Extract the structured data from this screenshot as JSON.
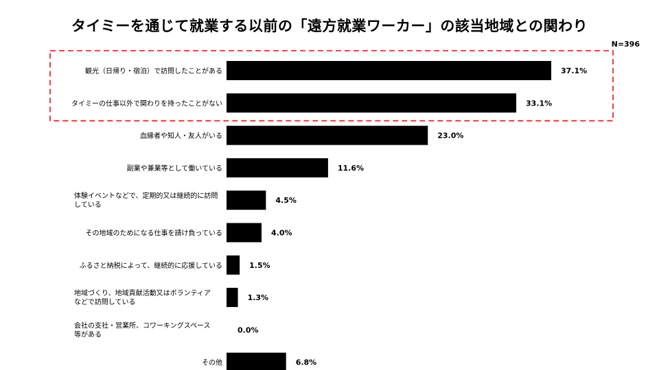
{
  "title": "タイミーを通じて就業する以前の「遠方就業ワーカー」の該当地域との関わり",
  "sample_size": "N=396",
  "colors": {
    "bar": "#000000",
    "highlight_box": "#e0302f"
  },
  "chart_data": {
    "type": "bar",
    "orientation": "horizontal",
    "categories": [
      "観光（日帰り・宿泊）で訪問したことがある",
      "タイミーの仕事以外で関わりを持ったことがない",
      "血縁者や知人・友人がいる",
      "副業や兼業等として働いている",
      "体験イベントなどで、定期的又は継続的に訪問している",
      "その地域のためになる仕事を請け負っている",
      "ふるさと納税によって、継続的に応援している",
      "地域づくり、地域貢献活動又はボランティアなどで訪問している",
      "会社の支社・営業所、コワーキングスペース等がある",
      "その他"
    ],
    "category_lines": [
      [
        "観光（日帰り・宿泊）で訪問したことがある"
      ],
      [
        "タイミーの仕事以外で関わりを持ったことがない"
      ],
      [
        "血縁者や知人・友人がいる"
      ],
      [
        "副業や兼業等として働いている"
      ],
      [
        "体験イベントなどで、定期的又は継続的に訪問",
        "している"
      ],
      [
        "その地域のためになる仕事を請け負っている"
      ],
      [
        "ふるさと納税によって、継続的に応援している"
      ],
      [
        "地域づくり、地域貢献活動又はボランティア",
        "などで訪問している"
      ],
      [
        "会社の支社・営業所、コワーキングスペース",
        "等がある"
      ],
      [
        "その他"
      ]
    ],
    "values": [
      37.1,
      33.1,
      23.0,
      11.6,
      4.5,
      4.0,
      1.5,
      1.3,
      0.0,
      6.8
    ],
    "value_labels": [
      "37.1%",
      "33.1%",
      "23.0%",
      "11.6%",
      "4.5%",
      "4.0%",
      "1.5%",
      "1.3%",
      "0.0%",
      "6.8%"
    ],
    "xlim": [
      0,
      40
    ],
    "highlighted_categories": [
      0,
      1
    ],
    "grid": false,
    "xlabel": "",
    "ylabel": ""
  }
}
